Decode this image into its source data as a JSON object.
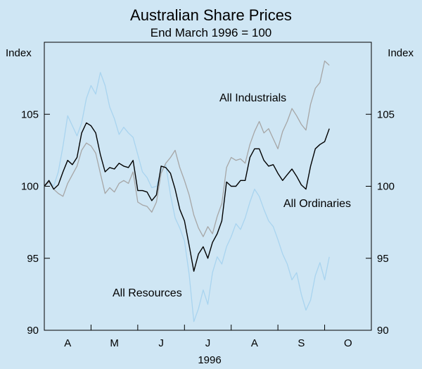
{
  "chart_data": {
    "type": "line",
    "title": "Australian Share Prices",
    "subtitle": "End March 1996 = 100",
    "ylabel_left": "Index",
    "ylabel_right": "Index",
    "xlabel": "1996",
    "ylim": [
      90,
      110
    ],
    "yticks": [
      90,
      95,
      100,
      105
    ],
    "xlim": [
      0,
      7
    ],
    "month_labels": [
      "A",
      "M",
      "J",
      "J",
      "A",
      "S",
      "O"
    ],
    "series": [
      {
        "name": "All Resources",
        "color": "#a9d4ef",
        "x": [
          0,
          0.1,
          0.2,
          0.3,
          0.4,
          0.5,
          0.6,
          0.7,
          0.8,
          0.9,
          1.0,
          1.1,
          1.2,
          1.3,
          1.4,
          1.5,
          1.6,
          1.7,
          1.8,
          1.9,
          2.0,
          2.1,
          2.2,
          2.3,
          2.4,
          2.5,
          2.6,
          2.7,
          2.8,
          2.9,
          3.0,
          3.1,
          3.2,
          3.3,
          3.4,
          3.5,
          3.6,
          3.7,
          3.8,
          3.9,
          4.0,
          4.1,
          4.2,
          4.3,
          4.4,
          4.5,
          4.6,
          4.7,
          4.8,
          4.9,
          5.0,
          5.1,
          5.2,
          5.3,
          5.4,
          5.5,
          5.6,
          5.7,
          5.8,
          5.9,
          6.0,
          6.1
        ],
        "y": [
          100.0,
          100.4,
          100.0,
          101.0,
          102.8,
          104.9,
          104.2,
          103.5,
          104.4,
          106.1,
          107.0,
          106.4,
          107.9,
          107.0,
          105.5,
          104.7,
          103.6,
          104.1,
          103.7,
          103.4,
          102.2,
          101.0,
          100.6,
          99.9,
          100.0,
          101.1,
          101.5,
          99.4,
          97.8,
          97.1,
          96.2,
          93.9,
          90.6,
          91.5,
          92.8,
          91.8,
          94.0,
          95.1,
          94.6,
          95.8,
          96.5,
          97.4,
          97.0,
          97.8,
          98.9,
          99.8,
          99.3,
          98.4,
          97.6,
          97.2,
          96.3,
          95.3,
          94.6,
          93.5,
          94.0,
          92.5,
          91.4,
          92.1,
          93.8,
          94.7,
          93.5,
          95.1
        ]
      },
      {
        "name": "All Industrials",
        "color": "#a6a6a6",
        "x": [
          0,
          0.1,
          0.2,
          0.3,
          0.4,
          0.5,
          0.6,
          0.7,
          0.8,
          0.9,
          1.0,
          1.1,
          1.2,
          1.3,
          1.4,
          1.5,
          1.6,
          1.7,
          1.8,
          1.9,
          2.0,
          2.1,
          2.2,
          2.3,
          2.4,
          2.5,
          2.6,
          2.7,
          2.8,
          2.9,
          3.0,
          3.1,
          3.2,
          3.3,
          3.4,
          3.5,
          3.6,
          3.7,
          3.8,
          3.9,
          4.0,
          4.1,
          4.2,
          4.3,
          4.4,
          4.5,
          4.6,
          4.7,
          4.8,
          4.9,
          5.0,
          5.1,
          5.2,
          5.3,
          5.4,
          5.5,
          5.6,
          5.7,
          5.8,
          5.9,
          6.0,
          6.1
        ],
        "y": [
          100.0,
          100.3,
          99.8,
          99.5,
          99.3,
          100.2,
          100.8,
          101.4,
          102.5,
          103.0,
          102.8,
          102.3,
          100.9,
          99.5,
          99.9,
          99.6,
          100.2,
          100.4,
          100.2,
          101.0,
          98.9,
          98.7,
          98.6,
          98.2,
          98.9,
          100.9,
          101.6,
          102.0,
          102.5,
          101.3,
          100.4,
          99.4,
          98.0,
          97.1,
          96.5,
          97.2,
          96.7,
          97.9,
          98.8,
          101.3,
          102.0,
          101.8,
          101.9,
          101.6,
          102.9,
          103.8,
          104.5,
          103.7,
          104.0,
          103.3,
          102.6,
          103.8,
          104.5,
          105.4,
          104.9,
          104.3,
          103.9,
          105.7,
          106.8,
          107.2,
          108.7,
          108.4
        ]
      },
      {
        "name": "All Ordinaries",
        "color": "#000000",
        "x": [
          0,
          0.1,
          0.2,
          0.3,
          0.4,
          0.5,
          0.6,
          0.7,
          0.8,
          0.9,
          1.0,
          1.1,
          1.2,
          1.3,
          1.4,
          1.5,
          1.6,
          1.7,
          1.8,
          1.9,
          2.0,
          2.1,
          2.2,
          2.3,
          2.4,
          2.5,
          2.6,
          2.7,
          2.8,
          2.9,
          3.0,
          3.1,
          3.2,
          3.3,
          3.4,
          3.5,
          3.6,
          3.7,
          3.8,
          3.9,
          4.0,
          4.1,
          4.2,
          4.3,
          4.4,
          4.5,
          4.6,
          4.7,
          4.8,
          4.9,
          5.0,
          5.1,
          5.2,
          5.3,
          5.4,
          5.5,
          5.6,
          5.7,
          5.8,
          5.9,
          6.0,
          6.1
        ],
        "y": [
          100.0,
          100.4,
          99.8,
          100.1,
          101.0,
          101.8,
          101.5,
          102.0,
          103.7,
          104.4,
          104.2,
          103.7,
          102.2,
          101.0,
          101.3,
          101.2,
          101.6,
          101.4,
          101.3,
          101.8,
          99.7,
          99.7,
          99.6,
          99.0,
          99.4,
          101.4,
          101.3,
          100.9,
          99.8,
          98.4,
          97.6,
          95.9,
          94.1,
          95.3,
          95.8,
          95.0,
          96.1,
          96.7,
          97.6,
          100.3,
          100.0,
          100.0,
          100.4,
          100.4,
          102.0,
          102.6,
          102.6,
          101.8,
          101.4,
          101.5,
          100.9,
          100.4,
          100.8,
          101.2,
          100.7,
          100.1,
          99.8,
          101.4,
          102.6,
          102.9,
          103.1,
          104.0
        ]
      }
    ],
    "annotations": [
      "All Industrials",
      "All Ordinaries",
      "All Resources"
    ]
  }
}
